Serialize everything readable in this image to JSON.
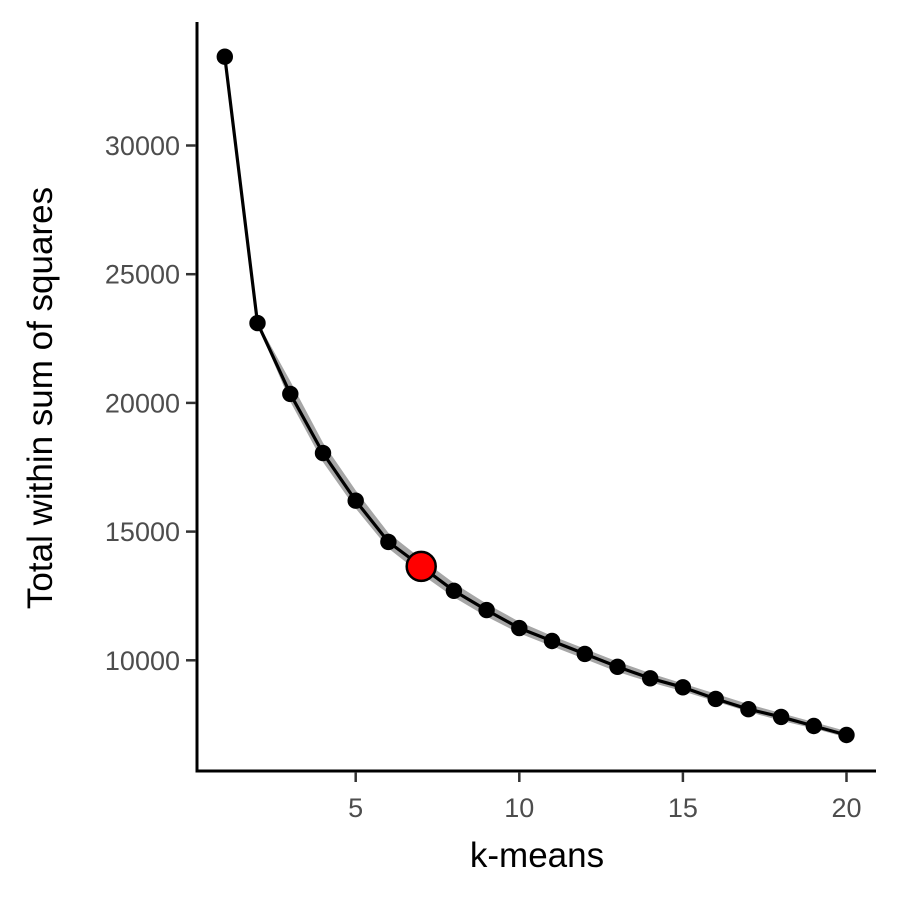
{
  "chart_data": {
    "type": "line",
    "title": "",
    "xlabel": "k-means",
    "ylabel": "Total within sum of squares",
    "x_ticks": [
      5,
      10,
      15,
      20
    ],
    "y_ticks": [
      10000,
      15000,
      20000,
      25000,
      30000
    ],
    "xlim": [
      0.15,
      20.9
    ],
    "ylim": [
      5700,
      34800
    ],
    "grid": false,
    "legend": "none",
    "series": [
      {
        "x": [
          1,
          2,
          3,
          4,
          5,
          6,
          7,
          8,
          9,
          10,
          11,
          12,
          13,
          14,
          15,
          16,
          17,
          18,
          19,
          20
        ],
        "values": [
          33450,
          23100,
          20350,
          18050,
          16200,
          14600,
          13650,
          12700,
          11950,
          11250,
          10750,
          10250,
          9750,
          9300,
          8950,
          8500,
          8100,
          7800,
          7450,
          7100
        ]
      }
    ],
    "ribbon": {
      "x": [
        2,
        3,
        4,
        5,
        6,
        7,
        8,
        9,
        10,
        11,
        12,
        13,
        14,
        15,
        16,
        17,
        18,
        19,
        20
      ],
      "upper": [
        23150,
        20850,
        18450,
        16600,
        14950,
        13950,
        13000,
        12200,
        11500,
        10950,
        10450,
        9950,
        9500,
        9100,
        8700,
        8300,
        7950,
        7600,
        7250
      ],
      "lower": [
        23050,
        20050,
        17700,
        15900,
        14350,
        13350,
        12450,
        11700,
        11050,
        10550,
        10050,
        9550,
        9150,
        8800,
        8400,
        8000,
        7650,
        7350,
        7000
      ]
    },
    "highlight": {
      "x": 7,
      "value": 13650
    },
    "colors": {
      "line": "#000000",
      "point": "#000000",
      "ribbon": "#a6a6a6",
      "highlight_fill": "#ff0000",
      "highlight_stroke": "#000000"
    }
  }
}
